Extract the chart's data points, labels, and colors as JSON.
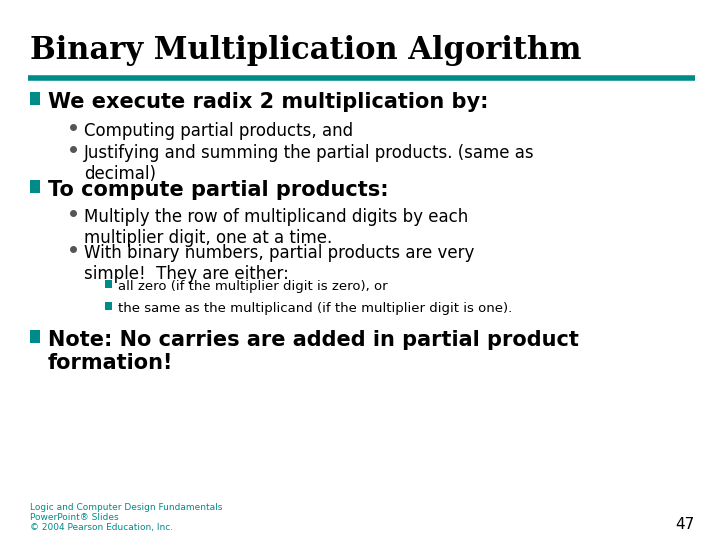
{
  "title": "Binary Multiplication Algorithm",
  "title_fontsize": 22,
  "title_color": "#000000",
  "teal_color": "#008B8B",
  "black_color": "#000000",
  "slide_bg": "#ffffff",
  "footer_color": "#008B8B",
  "page_number": "47",
  "content": [
    {
      "type": "section",
      "text": "We execute radix 2 multiplication by:",
      "fontsize": 15,
      "bold": true,
      "children": [
        {
          "text": "Computing partial products, and",
          "fontsize": 12,
          "bold": false
        },
        {
          "text": "Justifying and summing the partial products. (same as\ndecimal)",
          "fontsize": 12,
          "bold": false
        }
      ]
    },
    {
      "type": "section",
      "text": "To compute partial products:",
      "fontsize": 15,
      "bold": true,
      "children": [
        {
          "text": "Multiply the row of multiplicand digits by each\nmultiplier digit, one at a time.",
          "fontsize": 12,
          "bold": false
        },
        {
          "text": "With binary numbers, partial products are very\nsimple!  They are either:",
          "fontsize": 12,
          "bold": false,
          "sub_children": [
            {
              "text": "all zero (if the multiplier digit is zero), or",
              "fontsize": 9.5,
              "bold": false
            },
            {
              "text": "the same as the multiplicand (if the multiplier digit is one).",
              "fontsize": 9.5,
              "bold": false
            }
          ]
        }
      ]
    },
    {
      "type": "section",
      "text": "Note: No carries are added in partial product\nformation!",
      "fontsize": 15,
      "bold": true,
      "children": []
    }
  ],
  "footer_lines": [
    "Logic and Computer Design Fundamentals",
    "PowerPoint® Slides",
    "© 2004 Pearson Education, Inc."
  ]
}
